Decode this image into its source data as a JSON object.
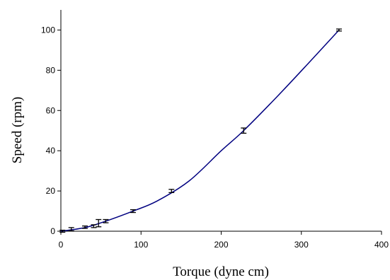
{
  "chart_data": {
    "type": "scatter",
    "title": "",
    "xlabel": "Torque (dyne cm)",
    "ylabel": "Speed (rpm)",
    "xlim": [
      0,
      400
    ],
    "ylim": [
      0,
      110
    ],
    "xticks": [
      0,
      100,
      200,
      300,
      400
    ],
    "yticks": [
      0,
      20,
      40,
      60,
      80,
      100
    ],
    "grid": false,
    "legend": "none",
    "line_color": "#000080",
    "series": [
      {
        "points": [
          {
            "x": 2,
            "y": 0,
            "err": 0.5
          },
          {
            "x": 13,
            "y": 1,
            "err": 0.8
          },
          {
            "x": 30,
            "y": 2,
            "err": 0.6
          },
          {
            "x": 41,
            "y": 2.5,
            "err": 0.7
          },
          {
            "x": 47,
            "y": 4,
            "err": 1.8
          },
          {
            "x": 56,
            "y": 5,
            "err": 0.8
          },
          {
            "x": 90,
            "y": 10,
            "err": 0.7
          },
          {
            "x": 138,
            "y": 20,
            "err": 0.8
          },
          {
            "x": 228,
            "y": 50,
            "err": 1.3
          },
          {
            "x": 347,
            "y": 100,
            "err": 0.5
          }
        ]
      }
    ],
    "fit_curve": [
      {
        "x": 0,
        "y": 0
      },
      {
        "x": 30,
        "y": 1.8
      },
      {
        "x": 56,
        "y": 5
      },
      {
        "x": 90,
        "y": 10
      },
      {
        "x": 120,
        "y": 15
      },
      {
        "x": 160,
        "y": 25
      },
      {
        "x": 200,
        "y": 40
      },
      {
        "x": 228,
        "y": 50
      },
      {
        "x": 270,
        "y": 67
      },
      {
        "x": 310,
        "y": 84
      },
      {
        "x": 347,
        "y": 100
      }
    ]
  }
}
